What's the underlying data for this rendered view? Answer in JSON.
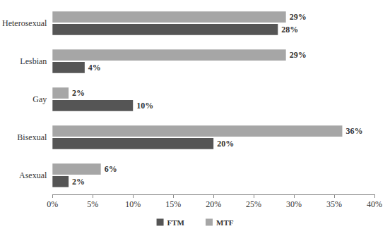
{
  "chart_data": {
    "type": "bar",
    "orientation": "horizontal",
    "categories": [
      "Heterosexual",
      "Lesbian",
      "Gay",
      "Bisexual",
      "Asexual"
    ],
    "series": [
      {
        "name": "FTM",
        "color": "#555555",
        "values": [
          28,
          4,
          10,
          20,
          2
        ],
        "value_labels": [
          "28%",
          "4%",
          "10%",
          "20%",
          "2%"
        ]
      },
      {
        "name": "MTF",
        "color": "#a6a6a6",
        "values": [
          29,
          29,
          2,
          36,
          6
        ],
        "value_labels": [
          "29%",
          "29%",
          "2%",
          "36%",
          "6%"
        ]
      }
    ],
    "xlim": [
      0,
      40
    ],
    "xticks": [
      {
        "value": 0,
        "label": "0%"
      },
      {
        "value": 5,
        "label": "5%"
      },
      {
        "value": 10,
        "label": "10%"
      },
      {
        "value": 15,
        "label": "15%"
      },
      {
        "value": 20,
        "label": "20%"
      },
      {
        "value": 25,
        "label": "25%"
      },
      {
        "value": 30,
        "label": "30%"
      },
      {
        "value": 35,
        "label": "35%"
      },
      {
        "value": 40,
        "label": "40%"
      }
    ],
    "grid": false,
    "legend": "bottom",
    "data_labels": true
  }
}
